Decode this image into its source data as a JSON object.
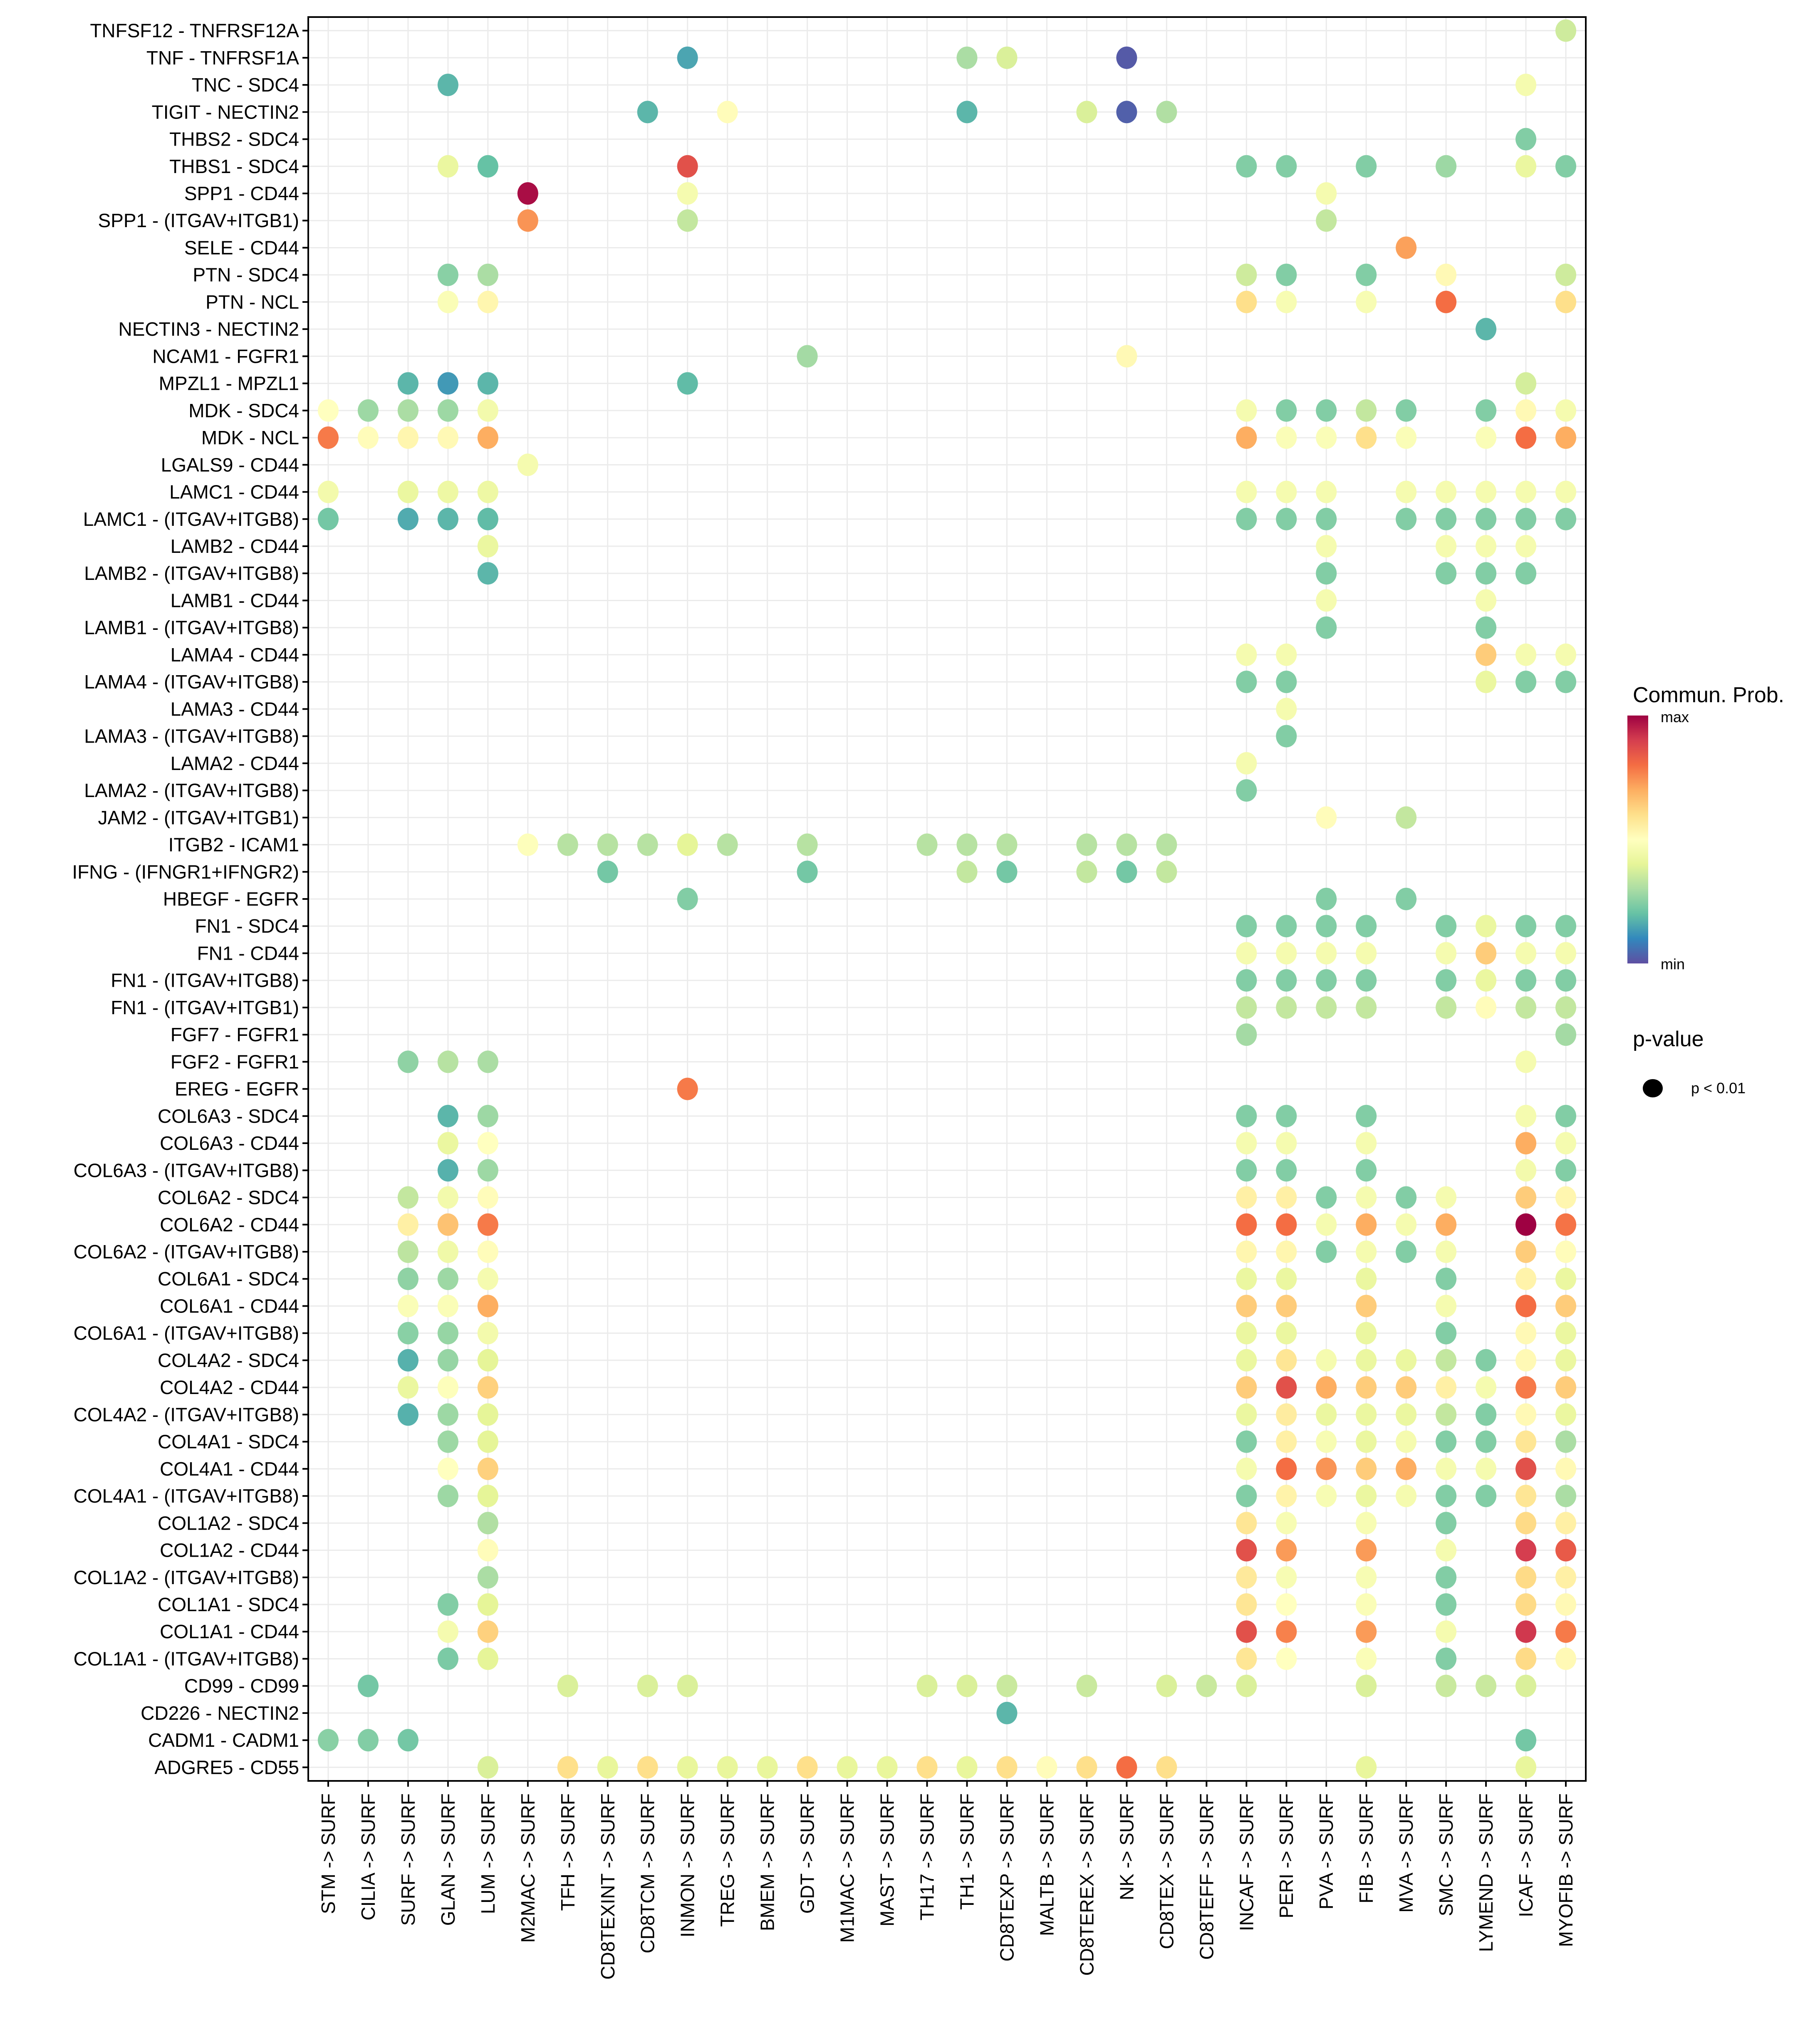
{
  "chart_data": {
    "type": "scatter",
    "subtype": "dot-matrix",
    "title": "",
    "xlabel": "",
    "ylabel": "",
    "grid": true,
    "x_categories": [
      "STM -> SURF",
      "CILIA -> SURF",
      "SURF -> SURF",
      "GLAN -> SURF",
      "LUM -> SURF",
      "M2MAC -> SURF",
      "TFH -> SURF",
      "CD8TEXINT -> SURF",
      "CD8TCM -> SURF",
      "INMON -> SURF",
      "TREG -> SURF",
      "BMEM -> SURF",
      "GDT -> SURF",
      "M1MAC -> SURF",
      "MAST -> SURF",
      "TH17 -> SURF",
      "TH1 -> SURF",
      "CD8TEXP -> SURF",
      "MALTB -> SURF",
      "CD8TEREX -> SURF",
      "NK -> SURF",
      "CD8TEX -> SURF",
      "CD8TEFF -> SURF",
      "INCAF -> SURF",
      "PERI -> SURF",
      "PVA -> SURF",
      "FIB -> SURF",
      "MVA -> SURF",
      "SMC -> SURF",
      "LYMEND -> SURF",
      "ICAF -> SURF",
      "MYOFIB -> SURF"
    ],
    "y_categories": [
      "TNFSF12 - TNFRSF12A",
      "TNF - TNFRSF1A",
      "TNC - SDC4",
      "TIGIT - NECTIN2",
      "THBS2 - SDC4",
      "THBS1 - SDC4",
      "SPP1 - CD44",
      "SPP1 - (ITGAV+ITGB1)",
      "SELE - CD44",
      "PTN - SDC4",
      "PTN - NCL",
      "NECTIN3 - NECTIN2",
      "NCAM1 - FGFR1",
      "MPZL1 - MPZL1",
      "MDK - SDC4",
      "MDK - NCL",
      "LGALS9 - CD44",
      "LAMC1 - CD44",
      "LAMC1 - (ITGAV+ITGB8)",
      "LAMB2 - CD44",
      "LAMB2 - (ITGAV+ITGB8)",
      "LAMB1 - CD44",
      "LAMB1 - (ITGAV+ITGB8)",
      "LAMA4 - CD44",
      "LAMA4 - (ITGAV+ITGB8)",
      "LAMA3 - CD44",
      "LAMA3 - (ITGAV+ITGB8)",
      "LAMA2 - CD44",
      "LAMA2 - (ITGAV+ITGB8)",
      "JAM2 - (ITGAV+ITGB1)",
      "ITGB2 - ICAM1",
      "IFNG - (IFNGR1+IFNGR2)",
      "HBEGF - EGFR",
      "FN1 - SDC4",
      "FN1 - CD44",
      "FN1 - (ITGAV+ITGB8)",
      "FN1 - (ITGAV+ITGB1)",
      "FGF7 - FGFR1",
      "FGF2 - FGFR1",
      "EREG - EGFR",
      "COL6A3 - SDC4",
      "COL6A3 - CD44",
      "COL6A3 - (ITGAV+ITGB8)",
      "COL6A2 - SDC4",
      "COL6A2 - CD44",
      "COL6A2 - (ITGAV+ITGB8)",
      "COL6A1 - SDC4",
      "COL6A1 - CD44",
      "COL6A1 - (ITGAV+ITGB8)",
      "COL4A2 - SDC4",
      "COL4A2 - CD44",
      "COL4A2 - (ITGAV+ITGB8)",
      "COL4A1 - SDC4",
      "COL4A1 - CD44",
      "COL4A1 - (ITGAV+ITGB8)",
      "COL1A2 - SDC4",
      "COL1A2 - CD44",
      "COL1A2 - (ITGAV+ITGB8)",
      "COL1A1 - SDC4",
      "COL1A1 - CD44",
      "COL1A1 - (ITGAV+ITGB8)",
      "CD99 - CD99",
      "CD226 - NECTIN2",
      "CADM1 - CADM1",
      "ADGRE5 - CD55"
    ],
    "value_scale": "relative commun. prob. (0 = min, 1 = max)",
    "points": {
      "TNFSF12 - TNFRSF12A": {
        "MYOFIB -> SURF": 0.36
      },
      "TNF - TNFRSF1A": {
        "INMON -> SURF": 0.15,
        "TH1 -> SURF": 0.3,
        "CD8TEXP -> SURF": 0.38,
        "NK -> SURF": 0.02
      },
      "TNC - SDC4": {
        "GLAN -> SURF": 0.18,
        "ICAF -> SURF": 0.46
      },
      "TIGIT - NECTIN2": {
        "CD8TCM -> SURF": 0.18,
        "TREG -> SURF": 0.51,
        "TH1 -> SURF": 0.18,
        "CD8TEREX -> SURF": 0.38,
        "NK -> SURF": 0.03,
        "CD8TEX -> SURF": 0.31
      },
      "THBS2 - SDC4": {
        "ICAF -> SURF": 0.24
      },
      "THBS1 - SDC4": {
        "GLAN -> SURF": 0.42,
        "LUM -> SURF": 0.2,
        "INMON -> SURF": 0.86,
        "INCAF -> SURF": 0.24,
        "PERI -> SURF": 0.24,
        "FIB -> SURF": 0.24,
        "SMC -> SURF": 0.28,
        "ICAF -> SURF": 0.42,
        "MYOFIB -> SURF": 0.24
      },
      "SPP1 - CD44": {
        "M2MAC -> SURF": 0.98,
        "INMON -> SURF": 0.46,
        "PVA -> SURF": 0.46
      },
      "SPP1 - (ITGAV+ITGB1)": {
        "M2MAC -> SURF": 0.74,
        "INMON -> SURF": 0.34,
        "PVA -> SURF": 0.34
      },
      "SELE - CD44": {
        "MVA -> SURF": 0.72
      },
      "PTN - SDC4": {
        "GLAN -> SURF": 0.25,
        "LUM -> SURF": 0.3,
        "INCAF -> SURF": 0.36,
        "PERI -> SURF": 0.24,
        "FIB -> SURF": 0.24,
        "SMC -> SURF": 0.52,
        "MYOFIB -> SURF": 0.36
      },
      "PTN - NCL": {
        "GLAN -> SURF": 0.48,
        "LUM -> SURF": 0.53,
        "INCAF -> SURF": 0.6,
        "PERI -> SURF": 0.47,
        "FIB -> SURF": 0.47,
        "SMC -> SURF": 0.8,
        "MYOFIB -> SURF": 0.6
      },
      "NECTIN3 - NECTIN2": {
        "LYMEND -> SURF": 0.18
      },
      "NCAM1 - FGFR1": {
        "GDT -> SURF": 0.29,
        "NK -> SURF": 0.52
      },
      "MPZL1 - MPZL1": {
        "SURF -> SURF": 0.18,
        "GLAN -> SURF": 0.13,
        "LUM -> SURF": 0.18,
        "INMON -> SURF": 0.19,
        "ICAF -> SURF": 0.37
      },
      "MDK - SDC4": {
        "STM -> SURF": 0.5,
        "CILIA -> SURF": 0.28,
        "SURF -> SURF": 0.3,
        "GLAN -> SURF": 0.28,
        "LUM -> SURF": 0.45,
        "INCAF -> SURF": 0.46,
        "PERI -> SURF": 0.24,
        "PVA -> SURF": 0.24,
        "FIB -> SURF": 0.34,
        "MVA -> SURF": 0.24,
        "LYMEND -> SURF": 0.24,
        "ICAF -> SURF": 0.52,
        "MYOFIB -> SURF": 0.46
      },
      "MDK - NCL": {
        "STM -> SURF": 0.78,
        "CILIA -> SURF": 0.51,
        "SURF -> SURF": 0.53,
        "GLAN -> SURF": 0.52,
        "LUM -> SURF": 0.7,
        "INCAF -> SURF": 0.7,
        "PERI -> SURF": 0.48,
        "PVA -> SURF": 0.48,
        "FIB -> SURF": 0.6,
        "MVA -> SURF": 0.48,
        "LYMEND -> SURF": 0.48,
        "ICAF -> SURF": 0.8,
        "MYOFIB -> SURF": 0.7
      },
      "LGALS9 - CD44": {
        "M2MAC -> SURF": 0.46
      },
      "LAMC1 - CD44": {
        "STM -> SURF": 0.45,
        "SURF -> SURF": 0.42,
        "GLAN -> SURF": 0.43,
        "LUM -> SURF": 0.43,
        "INCAF -> SURF": 0.46,
        "PERI -> SURF": 0.46,
        "PVA -> SURF": 0.46,
        "MVA -> SURF": 0.46,
        "SMC -> SURF": 0.46,
        "LYMEND -> SURF": 0.46,
        "ICAF -> SURF": 0.46,
        "MYOFIB -> SURF": 0.46
      },
      "LAMC1 - (ITGAV+ITGB8)": {
        "STM -> SURF": 0.22,
        "SURF -> SURF": 0.16,
        "GLAN -> SURF": 0.18,
        "LUM -> SURF": 0.19,
        "INCAF -> SURF": 0.24,
        "PERI -> SURF": 0.24,
        "PVA -> SURF": 0.24,
        "MVA -> SURF": 0.24,
        "SMC -> SURF": 0.24,
        "LYMEND -> SURF": 0.24,
        "ICAF -> SURF": 0.24,
        "MYOFIB -> SURF": 0.24
      },
      "LAMB2 - CD44": {
        "LUM -> SURF": 0.42,
        "PVA -> SURF": 0.46,
        "SMC -> SURF": 0.46,
        "LYMEND -> SURF": 0.46,
        "ICAF -> SURF": 0.46
      },
      "LAMB2 - (ITGAV+ITGB8)": {
        "LUM -> SURF": 0.18,
        "PVA -> SURF": 0.24,
        "SMC -> SURF": 0.24,
        "LYMEND -> SURF": 0.24,
        "ICAF -> SURF": 0.24
      },
      "LAMB1 - CD44": {
        "PVA -> SURF": 0.46,
        "LYMEND -> SURF": 0.46
      },
      "LAMB1 - (ITGAV+ITGB8)": {
        "PVA -> SURF": 0.24,
        "LYMEND -> SURF": 0.24
      },
      "LAMA4 - CD44": {
        "INCAF -> SURF": 0.46,
        "PERI -> SURF": 0.46,
        "LYMEND -> SURF": 0.64,
        "ICAF -> SURF": 0.46,
        "MYOFIB -> SURF": 0.46
      },
      "LAMA4 - (ITGAV+ITGB8)": {
        "INCAF -> SURF": 0.24,
        "PERI -> SURF": 0.24,
        "LYMEND -> SURF": 0.42,
        "ICAF -> SURF": 0.24,
        "MYOFIB -> SURF": 0.24
      },
      "LAMA3 - CD44": {
        "PERI -> SURF": 0.46
      },
      "LAMA3 - (ITGAV+ITGB8)": {
        "PERI -> SURF": 0.24
      },
      "LAMA2 - CD44": {
        "INCAF -> SURF": 0.46
      },
      "LAMA2 - (ITGAV+ITGB8)": {
        "INCAF -> SURF": 0.24
      },
      "JAM2 - (ITGAV+ITGB1)": {
        "PVA -> SURF": 0.51,
        "MVA -> SURF": 0.34
      },
      "ITGB2 - ICAM1": {
        "M2MAC -> SURF": 0.49,
        "TFH -> SURF": 0.32,
        "CD8TEXINT -> SURF": 0.32,
        "CD8TCM -> SURF": 0.32,
        "INMON -> SURF": 0.4,
        "TREG -> SURF": 0.32,
        "GDT -> SURF": 0.32,
        "TH17 -> SURF": 0.32,
        "TH1 -> SURF": 0.32,
        "CD8TEXP -> SURF": 0.32,
        "CD8TEREX -> SURF": 0.32,
        "NK -> SURF": 0.32,
        "CD8TEX -> SURF": 0.32
      },
      "IFNG - (IFNGR1+IFNGR2)": {
        "CD8TEXINT -> SURF": 0.22,
        "GDT -> SURF": 0.22,
        "TH1 -> SURF": 0.34,
        "CD8TEXP -> SURF": 0.22,
        "CD8TEREX -> SURF": 0.34,
        "NK -> SURF": 0.22,
        "CD8TEX -> SURF": 0.34
      },
      "HBEGF - EGFR": {
        "INMON -> SURF": 0.24,
        "PVA -> SURF": 0.24,
        "MVA -> SURF": 0.24
      },
      "FN1 - SDC4": {
        "INCAF -> SURF": 0.24,
        "PERI -> SURF": 0.24,
        "PVA -> SURF": 0.24,
        "FIB -> SURF": 0.24,
        "SMC -> SURF": 0.24,
        "LYMEND -> SURF": 0.42,
        "ICAF -> SURF": 0.24,
        "MYOFIB -> SURF": 0.24
      },
      "FN1 - CD44": {
        "INCAF -> SURF": 0.46,
        "PERI -> SURF": 0.46,
        "PVA -> SURF": 0.46,
        "FIB -> SURF": 0.46,
        "SMC -> SURF": 0.46,
        "LYMEND -> SURF": 0.64,
        "ICAF -> SURF": 0.46,
        "MYOFIB -> SURF": 0.46
      },
      "FN1 - (ITGAV+ITGB8)": {
        "INCAF -> SURF": 0.24,
        "PERI -> SURF": 0.24,
        "PVA -> SURF": 0.24,
        "FIB -> SURF": 0.24,
        "SMC -> SURF": 0.24,
        "LYMEND -> SURF": 0.42,
        "ICAF -> SURF": 0.24,
        "MYOFIB -> SURF": 0.24
      },
      "FN1 - (ITGAV+ITGB1)": {
        "INCAF -> SURF": 0.34,
        "PERI -> SURF": 0.34,
        "PVA -> SURF": 0.34,
        "FIB -> SURF": 0.34,
        "SMC -> SURF": 0.34,
        "LYMEND -> SURF": 0.51,
        "ICAF -> SURF": 0.34,
        "MYOFIB -> SURF": 0.34
      },
      "FGF7 - FGFR1": {
        "INCAF -> SURF": 0.29,
        "MYOFIB -> SURF": 0.29
      },
      "FGF2 - FGFR1": {
        "SURF -> SURF": 0.26,
        "GLAN -> SURF": 0.32,
        "LUM -> SURF": 0.3,
        "ICAF -> SURF": 0.46
      },
      "EREG - EGFR": {
        "INMON -> SURF": 0.78
      },
      "COL6A3 - SDC4": {
        "GLAN -> SURF": 0.18,
        "LUM -> SURF": 0.28,
        "INCAF -> SURF": 0.24,
        "PERI -> SURF": 0.24,
        "FIB -> SURF": 0.24,
        "ICAF -> SURF": 0.46,
        "MYOFIB -> SURF": 0.24
      },
      "COL6A3 - CD44": {
        "GLAN -> SURF": 0.42,
        "LUM -> SURF": 0.5,
        "INCAF -> SURF": 0.46,
        "PERI -> SURF": 0.46,
        "FIB -> SURF": 0.46,
        "ICAF -> SURF": 0.7,
        "MYOFIB -> SURF": 0.46
      },
      "COL6A3 - (ITGAV+ITGB8)": {
        "GLAN -> SURF": 0.17,
        "LUM -> SURF": 0.28,
        "INCAF -> SURF": 0.24,
        "PERI -> SURF": 0.24,
        "FIB -> SURF": 0.24,
        "ICAF -> SURF": 0.45,
        "MYOFIB -> SURF": 0.24
      },
      "COL6A2 - SDC4": {
        "SURF -> SURF": 0.34,
        "GLAN -> SURF": 0.45,
        "LUM -> SURF": 0.51,
        "INCAF -> SURF": 0.55,
        "PERI -> SURF": 0.55,
        "PVA -> SURF": 0.24,
        "FIB -> SURF": 0.46,
        "MVA -> SURF": 0.24,
        "SMC -> SURF": 0.46,
        "ICAF -> SURF": 0.64,
        "MYOFIB -> SURF": 0.53
      },
      "COL6A2 - CD44": {
        "SURF -> SURF": 0.55,
        "GLAN -> SURF": 0.66,
        "LUM -> SURF": 0.78,
        "INCAF -> SURF": 0.8,
        "PERI -> SURF": 0.8,
        "PVA -> SURF": 0.46,
        "FIB -> SURF": 0.7,
        "MVA -> SURF": 0.46,
        "SMC -> SURF": 0.7,
        "ICAF -> SURF": 1.0,
        "MYOFIB -> SURF": 0.79
      },
      "COL6A2 - (ITGAV+ITGB8)": {
        "SURF -> SURF": 0.33,
        "GLAN -> SURF": 0.44,
        "LUM -> SURF": 0.51,
        "INCAF -> SURF": 0.53,
        "PERI -> SURF": 0.53,
        "PVA -> SURF": 0.24,
        "FIB -> SURF": 0.46,
        "MVA -> SURF": 0.24,
        "SMC -> SURF": 0.46,
        "ICAF -> SURF": 0.64,
        "MYOFIB -> SURF": 0.51
      },
      "COL6A1 - SDC4": {
        "SURF -> SURF": 0.26,
        "GLAN -> SURF": 0.28,
        "LUM -> SURF": 0.46,
        "INCAF -> SURF": 0.42,
        "PERI -> SURF": 0.42,
        "FIB -> SURF": 0.42,
        "SMC -> SURF": 0.24,
        "ICAF -> SURF": 0.54,
        "MYOFIB -> SURF": 0.42
      },
      "COL6A1 - CD44": {
        "SURF -> SURF": 0.48,
        "GLAN -> SURF": 0.48,
        "LUM -> SURF": 0.7,
        "INCAF -> SURF": 0.64,
        "PERI -> SURF": 0.64,
        "FIB -> SURF": 0.64,
        "SMC -> SURF": 0.46,
        "ICAF -> SURF": 0.8,
        "MYOFIB -> SURF": 0.64
      },
      "COL6A1 - (ITGAV+ITGB8)": {
        "SURF -> SURF": 0.25,
        "GLAN -> SURF": 0.27,
        "LUM -> SURF": 0.45,
        "INCAF -> SURF": 0.42,
        "PERI -> SURF": 0.42,
        "FIB -> SURF": 0.42,
        "SMC -> SURF": 0.24,
        "ICAF -> SURF": 0.52,
        "MYOFIB -> SURF": 0.42
      },
      "COL4A2 - SDC4": {
        "SURF -> SURF": 0.17,
        "GLAN -> SURF": 0.27,
        "LUM -> SURF": 0.4,
        "INCAF -> SURF": 0.42,
        "PERI -> SURF": 0.58,
        "PVA -> SURF": 0.46,
        "FIB -> SURF": 0.42,
        "MVA -> SURF": 0.42,
        "SMC -> SURF": 0.34,
        "LYMEND -> SURF": 0.24,
        "ICAF -> SURF": 0.52,
        "MYOFIB -> SURF": 0.42
      },
      "COL4A2 - CD44": {
        "SURF -> SURF": 0.42,
        "GLAN -> SURF": 0.49,
        "LUM -> SURF": 0.63,
        "INCAF -> SURF": 0.64,
        "PERI -> SURF": 0.86,
        "PVA -> SURF": 0.7,
        "FIB -> SURF": 0.64,
        "MVA -> SURF": 0.64,
        "SMC -> SURF": 0.55,
        "LYMEND -> SURF": 0.46,
        "ICAF -> SURF": 0.78,
        "MYOFIB -> SURF": 0.64
      },
      "COL4A2 - (ITGAV+ITGB8)": {
        "SURF -> SURF": 0.17,
        "GLAN -> SURF": 0.28,
        "LUM -> SURF": 0.4,
        "INCAF -> SURF": 0.42,
        "PERI -> SURF": 0.56,
        "PVA -> SURF": 0.42,
        "FIB -> SURF": 0.42,
        "MVA -> SURF": 0.42,
        "SMC -> SURF": 0.34,
        "LYMEND -> SURF": 0.24,
        "ICAF -> SURF": 0.52,
        "MYOFIB -> SURF": 0.42
      },
      "COL4A1 - SDC4": {
        "GLAN -> SURF": 0.28,
        "LUM -> SURF": 0.4,
        "INCAF -> SURF": 0.24,
        "PERI -> SURF": 0.55,
        "PVA -> SURF": 0.47,
        "FIB -> SURF": 0.42,
        "MVA -> SURF": 0.46,
        "SMC -> SURF": 0.24,
        "LYMEND -> SURF": 0.24,
        "ICAF -> SURF": 0.58,
        "MYOFIB -> SURF": 0.3
      },
      "COL4A1 - CD44": {
        "GLAN -> SURF": 0.5,
        "LUM -> SURF": 0.63,
        "INCAF -> SURF": 0.46,
        "PERI -> SURF": 0.8,
        "PVA -> SURF": 0.74,
        "FIB -> SURF": 0.64,
        "MVA -> SURF": 0.7,
        "SMC -> SURF": 0.46,
        "LYMEND -> SURF": 0.46,
        "ICAF -> SURF": 0.86,
        "MYOFIB -> SURF": 0.52
      },
      "COL4A1 - (ITGAV+ITGB8)": {
        "GLAN -> SURF": 0.28,
        "LUM -> SURF": 0.4,
        "INCAF -> SURF": 0.24,
        "PERI -> SURF": 0.54,
        "PVA -> SURF": 0.47,
        "FIB -> SURF": 0.42,
        "MVA -> SURF": 0.46,
        "SMC -> SURF": 0.24,
        "LYMEND -> SURF": 0.24,
        "ICAF -> SURF": 0.58,
        "MYOFIB -> SURF": 0.3
      },
      "COL1A2 - SDC4": {
        "LUM -> SURF": 0.31,
        "INCAF -> SURF": 0.58,
        "PERI -> SURF": 0.47,
        "FIB -> SURF": 0.47,
        "SMC -> SURF": 0.24,
        "ICAF -> SURF": 0.61,
        "MYOFIB -> SURF": 0.55
      },
      "COL1A2 - CD44": {
        "LUM -> SURF": 0.51,
        "INCAF -> SURF": 0.86,
        "PERI -> SURF": 0.73,
        "FIB -> SURF": 0.73,
        "SMC -> SURF": 0.46,
        "ICAF -> SURF": 0.9,
        "MYOFIB -> SURF": 0.84
      },
      "COL1A2 - (ITGAV+ITGB8)": {
        "LUM -> SURF": 0.3,
        "INCAF -> SURF": 0.57,
        "PERI -> SURF": 0.47,
        "FIB -> SURF": 0.47,
        "SMC -> SURF": 0.24,
        "ICAF -> SURF": 0.61,
        "MYOFIB -> SURF": 0.55
      },
      "COL1A1 - SDC4": {
        "GLAN -> SURF": 0.24,
        "LUM -> SURF": 0.4,
        "INCAF -> SURF": 0.58,
        "PERI -> SURF": 0.5,
        "FIB -> SURF": 0.48,
        "SMC -> SURF": 0.24,
        "ICAF -> SURF": 0.61,
        "MYOFIB -> SURF": 0.52
      },
      "COL1A1 - CD44": {
        "GLAN -> SURF": 0.46,
        "LUM -> SURF": 0.63,
        "INCAF -> SURF": 0.86,
        "PERI -> SURF": 0.77,
        "FIB -> SURF": 0.73,
        "SMC -> SURF": 0.46,
        "ICAF -> SURF": 0.91,
        "MYOFIB -> SURF": 0.78
      },
      "COL1A1 - (ITGAV+ITGB8)": {
        "GLAN -> SURF": 0.23,
        "LUM -> SURF": 0.4,
        "INCAF -> SURF": 0.58,
        "PERI -> SURF": 0.5,
        "FIB -> SURF": 0.48,
        "SMC -> SURF": 0.24,
        "ICAF -> SURF": 0.61,
        "MYOFIB -> SURF": 0.52
      },
      "CD99 - CD99": {
        "CILIA -> SURF": 0.22,
        "TFH -> SURF": 0.38,
        "CD8TCM -> SURF": 0.38,
        "INMON -> SURF": 0.38,
        "TH17 -> SURF": 0.38,
        "TH1 -> SURF": 0.38,
        "CD8TEXP -> SURF": 0.35,
        "CD8TEREX -> SURF": 0.35,
        "CD8TEX -> SURF": 0.38,
        "CD8TEFF -> SURF": 0.35,
        "INCAF -> SURF": 0.38,
        "FIB -> SURF": 0.38,
        "SMC -> SURF": 0.35,
        "LYMEND -> SURF": 0.35,
        "ICAF -> SURF": 0.38
      },
      "CD226 - NECTIN2": {
        "CD8TEXP -> SURF": 0.18
      },
      "CADM1 - CADM1": {
        "STM -> SURF": 0.25,
        "CILIA -> SURF": 0.24,
        "SURF -> SURF": 0.22,
        "ICAF -> SURF": 0.22
      },
      "ADGRE5 - CD55": {
        "LUM -> SURF": 0.38,
        "TFH -> SURF": 0.6,
        "CD8TEXINT -> SURF": 0.41,
        "CD8TCM -> SURF": 0.6,
        "INMON -> SURF": 0.41,
        "TREG -> SURF": 0.41,
        "BMEM -> SURF": 0.41,
        "GDT -> SURF": 0.6,
        "M1MAC -> SURF": 0.41,
        "MAST -> SURF": 0.41,
        "TH17 -> SURF": 0.6,
        "TH1 -> SURF": 0.41,
        "CD8TEXP -> SURF": 0.6,
        "MALTB -> SURF": 0.51,
        "CD8TEREX -> SURF": 0.6,
        "NK -> SURF": 0.8,
        "CD8TEX -> SURF": 0.6,
        "FIB -> SURF": 0.41,
        "ICAF -> SURF": 0.41
      }
    },
    "legend": {
      "color_title": "Commun. Prob.",
      "color_max_label": "max",
      "color_min_label": "min",
      "color_scale": [
        "#5E4FA2",
        "#3288BD",
        "#66C2A5",
        "#ABDDA4",
        "#E6F598",
        "#FFFFBF",
        "#FEE08B",
        "#FDAE61",
        "#F46D43",
        "#D53E4F",
        "#9E0142"
      ],
      "size_title": "p-value",
      "size_label": "p < 0.01",
      "placement": "right"
    }
  }
}
